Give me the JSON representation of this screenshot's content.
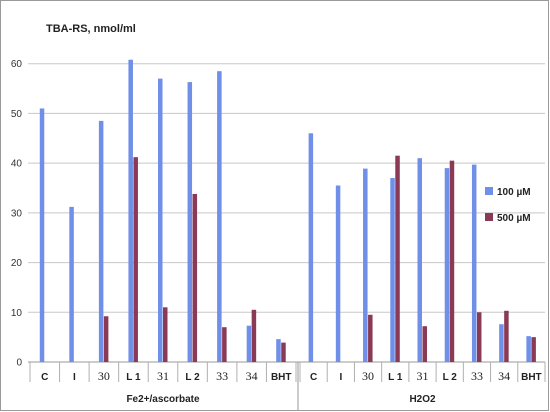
{
  "chart_data": {
    "type": "bar",
    "title": "TBA-RS, nmol/ml",
    "ylim": [
      0,
      70
    ],
    "yticks": [
      0,
      10,
      20,
      30,
      40,
      50,
      60
    ],
    "grid": true,
    "legend_position": "right",
    "groups": [
      {
        "label": "Fe2+/ascorbate",
        "categories": [
          "C",
          "I",
          "30",
          "L 1",
          "31",
          "L 2",
          "33",
          "34",
          "BHT"
        ],
        "series": [
          {
            "name": "100 µM",
            "color": "#6f8fe8",
            "values": [
              51,
              31.2,
              48.5,
              60.8,
              57,
              56.3,
              58.5,
              7.3,
              4.6
            ]
          },
          {
            "name": "500 µM",
            "color": "#8a3a55",
            "values": [
              null,
              null,
              9.2,
              41.2,
              11,
              33.8,
              7,
              10.5,
              3.9
            ]
          }
        ]
      },
      {
        "label": "H2O2",
        "categories": [
          "C",
          "I",
          "30",
          "L 1",
          "31",
          "L 2",
          "33",
          "34",
          "BHT"
        ],
        "series": [
          {
            "name": "100 µM",
            "color": "#6f8fe8",
            "values": [
              46,
              35.5,
              38.9,
              37,
              41,
              39,
              39.7,
              7.6,
              5.2
            ]
          },
          {
            "name": "500 µM",
            "color": "#8a3a55",
            "values": [
              null,
              null,
              9.5,
              41.5,
              7.2,
              40.5,
              10,
              10.3,
              5
            ]
          }
        ]
      }
    ]
  }
}
